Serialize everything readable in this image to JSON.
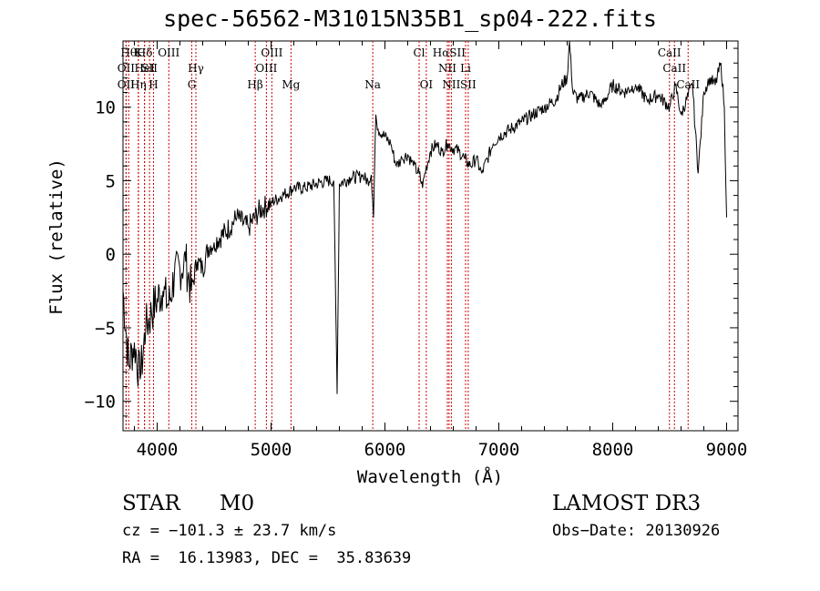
{
  "chart_data": {
    "type": "line",
    "title": "spec-56562-M31015N35B1_sp04-222.fits",
    "xlabel": "Wavelength (Å)",
    "ylabel": "Flux (relative)",
    "xlim": [
      3700,
      9100
    ],
    "ylim": [
      -12,
      14.5
    ],
    "x_ticks": [
      4000,
      5000,
      6000,
      7000,
      8000,
      9000
    ],
    "y_ticks": [
      -10,
      -5,
      0,
      5,
      10
    ],
    "series": [
      {
        "name": "flux",
        "x": [
          3700,
          3750,
          3800,
          3850,
          3900,
          3950,
          4000,
          4050,
          4100,
          4150,
          4200,
          4250,
          4300,
          4350,
          4400,
          4450,
          4500,
          4600,
          4700,
          4800,
          4900,
          5000,
          5100,
          5200,
          5300,
          5400,
          5500,
          5550,
          5580,
          5600,
          5650,
          5700,
          5800,
          5850,
          5880,
          5900,
          5920,
          5940,
          6000,
          6050,
          6100,
          6150,
          6200,
          6250,
          6300,
          6330,
          6350,
          6400,
          6450,
          6500,
          6550,
          6600,
          6650,
          6700,
          6750,
          6800,
          6850,
          6900,
          6950,
          7000,
          7100,
          7200,
          7300,
          7400,
          7500,
          7550,
          7600,
          7620,
          7650,
          7700,
          7800,
          7900,
          8000,
          8100,
          8200,
          8300,
          8400,
          8500,
          8550,
          8600,
          8650,
          8700,
          8750,
          8800,
          8850,
          8900,
          8950,
          8980,
          9000
        ],
        "y": [
          -2.5,
          -7.5,
          -6.0,
          -8.5,
          -5.0,
          -4.0,
          -3.0,
          -2.5,
          -3.5,
          -1.5,
          -1.0,
          -0.5,
          -2.5,
          -0.5,
          -1.0,
          0.5,
          0.8,
          1.5,
          2.5,
          1.8,
          3.0,
          3.5,
          4.0,
          4.5,
          4.5,
          4.8,
          5.0,
          5.0,
          -9.5,
          4.8,
          5.0,
          5.2,
          5.3,
          5.0,
          5.4,
          2.5,
          9.5,
          8.5,
          8.0,
          7.5,
          6.0,
          6.5,
          6.8,
          6.0,
          5.5,
          4.5,
          5.5,
          7.0,
          7.5,
          7.0,
          7.5,
          7.2,
          7.0,
          6.5,
          6.0,
          6.5,
          5.5,
          6.5,
          7.5,
          8.0,
          8.5,
          9.0,
          9.5,
          10.0,
          10.5,
          11.5,
          12.0,
          14.5,
          11.0,
          10.5,
          11.0,
          10.0,
          11.5,
          11.0,
          11.5,
          10.5,
          10.8,
          10.0,
          11.5,
          9.5,
          10.5,
          11.5,
          5.5,
          11.0,
          12.0,
          11.5,
          13.0,
          10.0,
          2.5
        ]
      }
    ],
    "line_markers": [
      {
        "x": 3750,
        "label": "Hθ",
        "row": 0
      },
      {
        "x": 3835,
        "label": "K",
        "row": 0
      },
      {
        "x": 3889,
        "label": "Hδ",
        "row": 0
      },
      {
        "x": 4102,
        "label": "OIII",
        "row": 0
      },
      {
        "x": 5007,
        "label": "OIII",
        "row": 0
      },
      {
        "x": 6300,
        "label": "Cl",
        "row": 0
      },
      {
        "x": 6563,
        "label": "HαSII",
        "row": 0
      },
      {
        "x": 8498,
        "label": "CaII",
        "row": 0
      },
      {
        "x": 3727,
        "label": "OII",
        "row": 1
      },
      {
        "x": 3889,
        "label": "HeI",
        "row": 1
      },
      {
        "x": 3933,
        "label": "SII",
        "row": 1
      },
      {
        "x": 4340,
        "label": "Hγ",
        "row": 1
      },
      {
        "x": 4959,
        "label": "OIII",
        "row": 1
      },
      {
        "x": 6548,
        "label": "NII",
        "row": 1
      },
      {
        "x": 6708,
        "label": "Li",
        "row": 1
      },
      {
        "x": 8542,
        "label": "CaII",
        "row": 1
      },
      {
        "x": 3727,
        "label": "OII",
        "row": 2
      },
      {
        "x": 3835,
        "label": "Hη",
        "row": 2
      },
      {
        "x": 3968,
        "label": "H",
        "row": 2
      },
      {
        "x": 4304,
        "label": "G",
        "row": 2
      },
      {
        "x": 4861,
        "label": "Hβ",
        "row": 2
      },
      {
        "x": 5175,
        "label": "Mg",
        "row": 2
      },
      {
        "x": 5893,
        "label": "Na",
        "row": 2
      },
      {
        "x": 6363,
        "label": "OI",
        "row": 2
      },
      {
        "x": 6583,
        "label": "NII",
        "row": 2
      },
      {
        "x": 6731,
        "label": "SII",
        "row": 2
      },
      {
        "x": 8662,
        "label": "CaII",
        "row": 2
      }
    ],
    "marker_color": "#cc0000",
    "line_color": "#000000"
  },
  "footer": {
    "class": "STAR",
    "subclass": "M0",
    "survey": "LAMOST DR3",
    "redshift": "cz = −101.3 ± 23.7 km/s",
    "obs_date": "Obs−Date: 20130926",
    "coords": "RA =  16.13983, DEC =  35.83639"
  }
}
